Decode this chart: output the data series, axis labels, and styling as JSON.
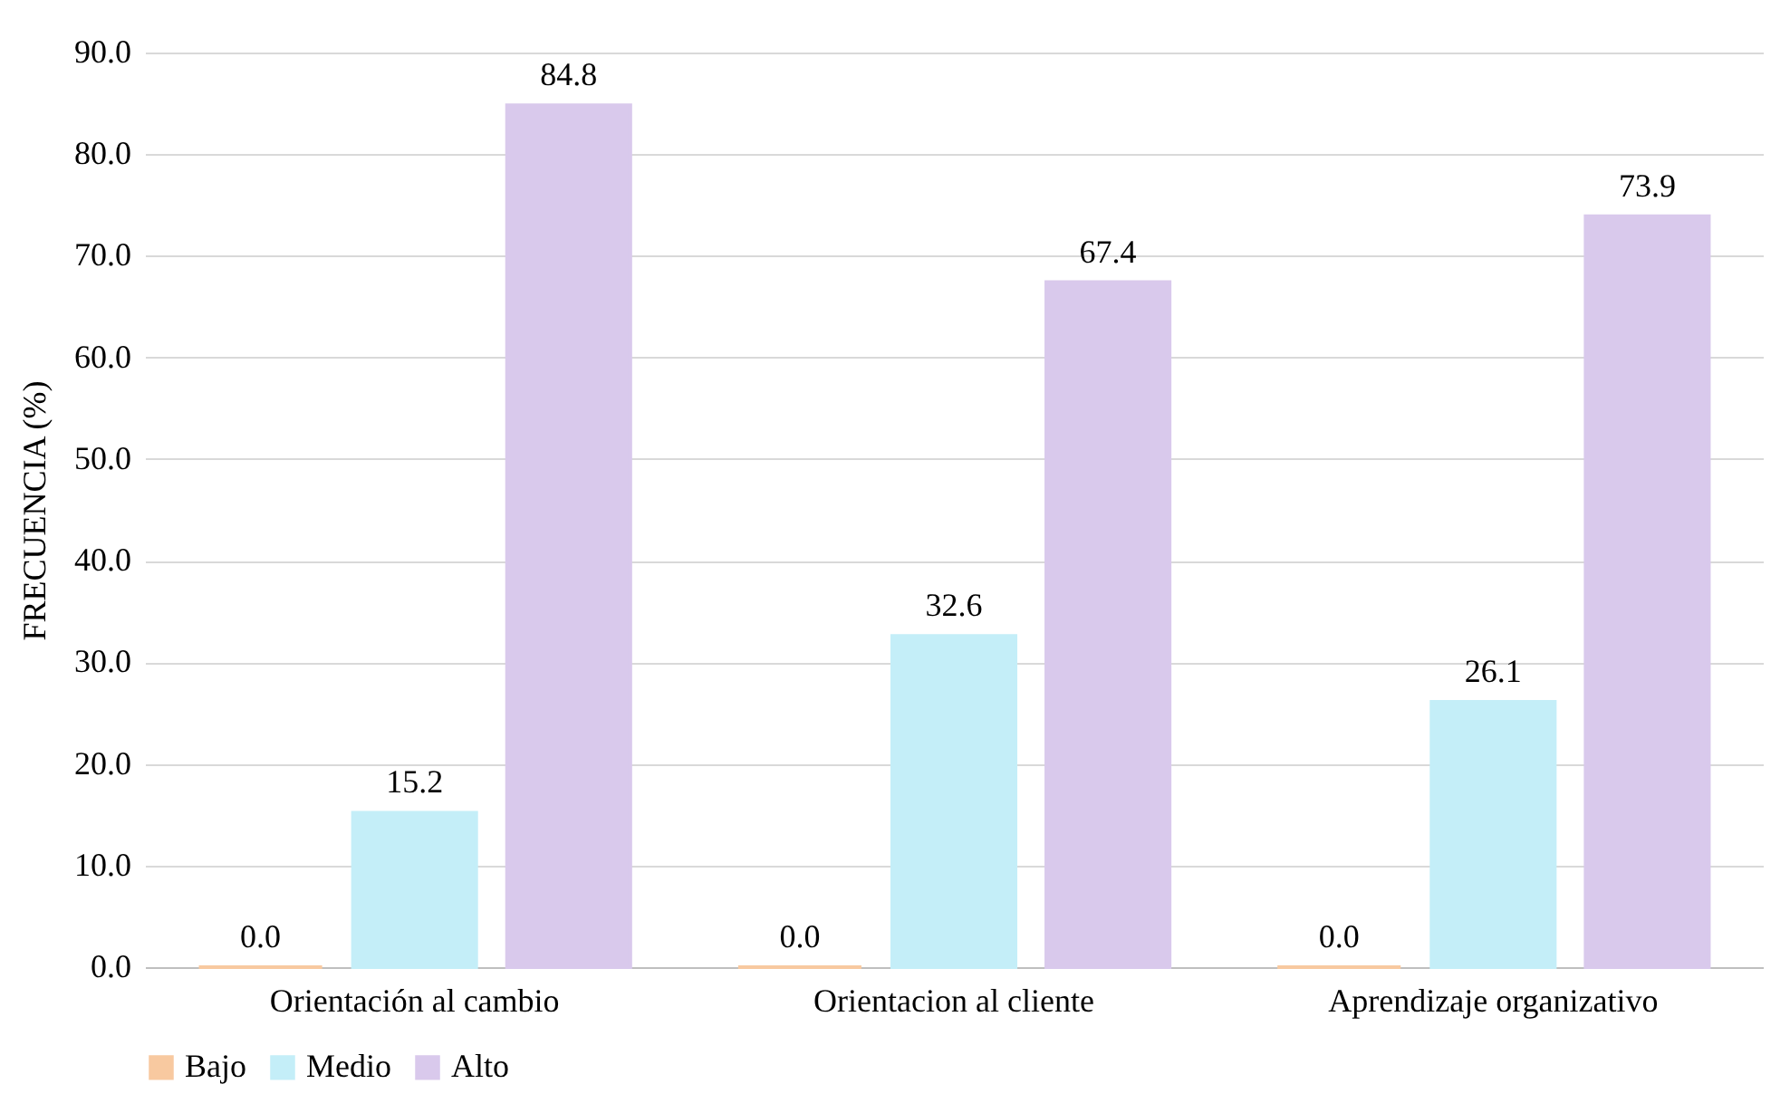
{
  "chart_data": {
    "type": "bar",
    "ylabel": "FRECUENCIA (%)",
    "categories": [
      "Orientación al cambio",
      "Orientacion al cliente",
      "Aprendizaje organizativo"
    ],
    "series": [
      {
        "name": "Bajo",
        "color": "#f8c9a0",
        "values": [
          0,
          0,
          0
        ],
        "value_labels": [
          "0.0",
          "0.0",
          "0.0"
        ]
      },
      {
        "name": "Medio",
        "color": "#c4eef8",
        "values": [
          15.2,
          32.6,
          26.1
        ],
        "value_labels": [
          "15.2",
          "32.6",
          "26.1"
        ]
      },
      {
        "name": "Alto",
        "color": "#d9c9ec",
        "values": [
          84.8,
          67.4,
          73.9
        ],
        "value_labels": [
          "84.8",
          "67.4",
          "73.9"
        ]
      }
    ],
    "ylim": [
      0,
      90
    ],
    "yticks": [
      {
        "value": 0,
        "label": "0.0"
      },
      {
        "value": 10,
        "label": "10.0"
      },
      {
        "value": 20,
        "label": "20.0"
      },
      {
        "value": 30,
        "label": "30.0"
      },
      {
        "value": 40,
        "label": "40.0"
      },
      {
        "value": 50,
        "label": "50.0"
      },
      {
        "value": 60,
        "label": "60.0"
      },
      {
        "value": 70,
        "label": "70.0"
      },
      {
        "value": 80,
        "label": "80.0"
      },
      {
        "value": 90,
        "label": "90.0"
      }
    ],
    "grid": "y",
    "legend": "bottom"
  }
}
